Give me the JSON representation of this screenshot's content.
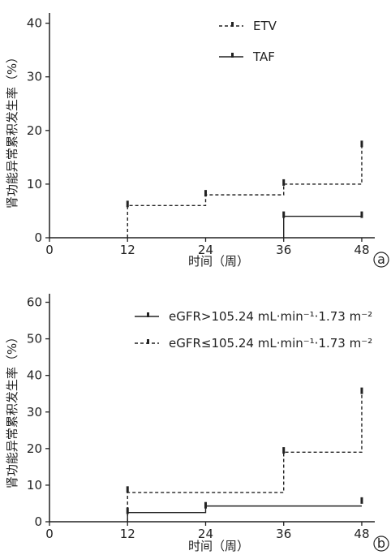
{
  "chart_data": [
    {
      "type": "line",
      "step": true,
      "panel_label": "a",
      "xlabel": "时间（周）",
      "ylabel": "肾功能异常累积发生率（%）",
      "x_ticks": [
        0,
        12,
        24,
        36,
        48
      ],
      "y_ticks": [
        0,
        10,
        20,
        30,
        40
      ],
      "xlim": [
        0,
        50
      ],
      "ylim": [
        0,
        41
      ],
      "legend_position": "top-center",
      "grid": false,
      "series": [
        {
          "name": "ETV",
          "style": "dashed",
          "color": "#222222",
          "x": [
            12,
            24,
            36,
            48
          ],
          "y": [
            6,
            8,
            10,
            17.5
          ],
          "censor": [
            [
              12,
              6.3
            ],
            [
              24,
              8.3
            ],
            [
              36,
              10.3
            ],
            [
              48,
              17.5
            ]
          ]
        },
        {
          "name": "TAF",
          "style": "solid",
          "color": "#222222",
          "x": [
            36,
            48
          ],
          "y": [
            4,
            4
          ],
          "censor": [
            [
              36,
              4.3
            ],
            [
              48,
              4.3
            ]
          ]
        }
      ]
    },
    {
      "type": "line",
      "step": true,
      "panel_label": "b",
      "xlabel": "时间（周）",
      "ylabel": "肾功能异常累积发生率（%）",
      "x_ticks": [
        0,
        12,
        24,
        36,
        48
      ],
      "y_ticks": [
        0,
        10,
        20,
        30,
        40,
        50,
        60
      ],
      "xlim": [
        0,
        50
      ],
      "ylim": [
        0,
        61
      ],
      "legend_position": "top-right",
      "grid": false,
      "series": [
        {
          "name": "eGFR>105.24 mL·min⁻¹·1.73 m⁻²",
          "style": "solid",
          "color": "#222222",
          "x": [
            12,
            24,
            48
          ],
          "y": [
            2.5,
            4.3,
            4.3
          ],
          "censor": [
            [
              12,
              3.0
            ],
            [
              24,
              4.5
            ],
            [
              48,
              5.8
            ]
          ]
        },
        {
          "name": "eGFR≤105.24 mL·min⁻¹·1.73 m⁻²",
          "style": "dashed",
          "color": "#222222",
          "x": [
            12,
            36,
            48
          ],
          "y": [
            8,
            19,
            36
          ],
          "censor": [
            [
              12,
              8.8
            ],
            [
              36,
              19.5
            ],
            [
              48,
              35.8
            ]
          ]
        }
      ]
    }
  ]
}
